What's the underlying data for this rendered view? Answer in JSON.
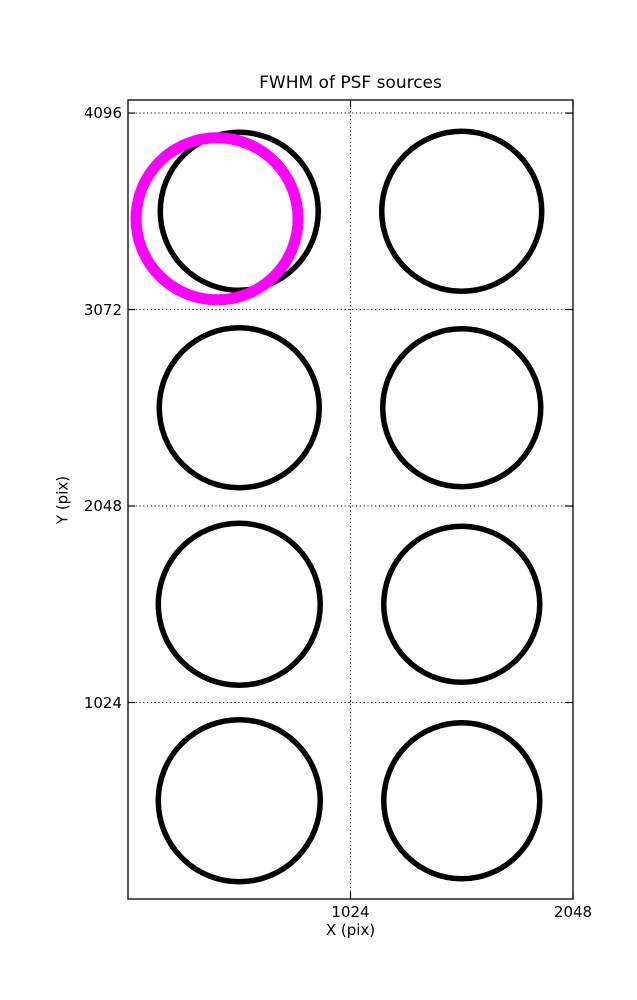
{
  "chart_data": {
    "type": "scatter",
    "title": "FWHM of PSF sources",
    "xlabel": "X (pix)",
    "ylabel": "Y (pix)",
    "xlim": [
      0,
      2048
    ],
    "ylim": [
      0,
      4164
    ],
    "grid": true,
    "grid_style": "dotted",
    "legend": "none",
    "xticks": [
      {
        "value": 1024,
        "label": "1024"
      },
      {
        "value": 2048,
        "label": "2048"
      }
    ],
    "yticks": [
      {
        "value": 1024,
        "label": "1024"
      },
      {
        "value": 2048,
        "label": "2048"
      },
      {
        "value": 3072,
        "label": "3072"
      },
      {
        "value": 4096,
        "label": "4096"
      }
    ],
    "colors": {
      "source_stroke": "#000000",
      "highlight_stroke": "#ff00ff",
      "background": "#ffffff"
    },
    "psf_sources": [
      {
        "x": 512,
        "y": 3584,
        "radius_px": 79,
        "stroke_px": 5.5
      },
      {
        "x": 1536,
        "y": 3584,
        "radius_px": 80,
        "stroke_px": 5.5
      },
      {
        "x": 512,
        "y": 2560,
        "radius_px": 80,
        "stroke_px": 5.5
      },
      {
        "x": 1536,
        "y": 2560,
        "radius_px": 79,
        "stroke_px": 5.5
      },
      {
        "x": 512,
        "y": 1536,
        "radius_px": 81,
        "stroke_px": 5.5
      },
      {
        "x": 1536,
        "y": 1536,
        "radius_px": 78,
        "stroke_px": 5.5
      },
      {
        "x": 512,
        "y": 512,
        "radius_px": 81,
        "stroke_px": 5.5
      },
      {
        "x": 1536,
        "y": 512,
        "radius_px": 78,
        "stroke_px": 5.5
      }
    ],
    "highlight_source": {
      "x": 410,
      "y": 3545,
      "radius_px": 81,
      "stroke_px": 11,
      "color": "#ff00ff"
    }
  }
}
